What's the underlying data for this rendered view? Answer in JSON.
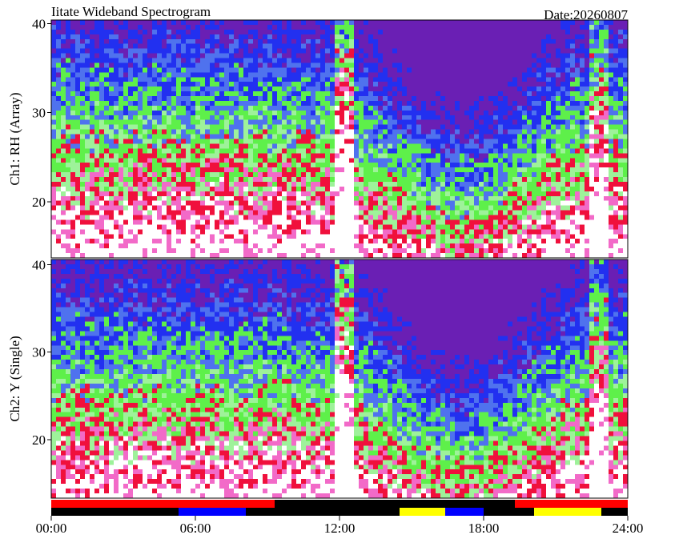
{
  "chart_data": {
    "type": "spectrogram",
    "title": "Iitate Wideband Spectrogram",
    "date_label": "Date:20260807",
    "xlim": [
      0,
      24
    ],
    "xticks": [
      {
        "value": 0,
        "label": "00:00"
      },
      {
        "value": 6,
        "label": "06:00"
      },
      {
        "value": 12,
        "label": "12:00"
      },
      {
        "value": 18,
        "label": "18:00"
      },
      {
        "value": 24,
        "label": "24:00"
      }
    ],
    "panels": [
      {
        "ylabel": "Ch1: RH (Array)",
        "ylim": [
          13.7,
          40.4
        ],
        "yticks": [
          20,
          30,
          40
        ]
      },
      {
        "ylabel": "Ch2: Y (Single)",
        "ylim": [
          13.3,
          40.6
        ],
        "yticks": [
          20,
          30,
          40
        ]
      }
    ],
    "status_bars": [
      {
        "segments": [
          {
            "start": 0,
            "end": 9.3,
            "color": "#ff0000"
          },
          {
            "start": 9.3,
            "end": 19.3,
            "color": "#000000"
          },
          {
            "start": 19.3,
            "end": 24,
            "color": "#ff0000"
          }
        ]
      },
      {
        "segments": [
          {
            "start": 0,
            "end": 5.3,
            "color": "#000000"
          },
          {
            "start": 5.3,
            "end": 8.1,
            "color": "#0000ff"
          },
          {
            "start": 8.1,
            "end": 14.5,
            "color": "#000000"
          },
          {
            "start": 14.5,
            "end": 16.4,
            "color": "#ffff00"
          },
          {
            "start": 16.4,
            "end": 18,
            "color": "#0000ff"
          },
          {
            "start": 18,
            "end": 20.1,
            "color": "#000000"
          },
          {
            "start": 20.1,
            "end": 22.9,
            "color": "#ffff00"
          },
          {
            "start": 22.9,
            "end": 24,
            "color": "#000000"
          }
        ]
      }
    ]
  }
}
